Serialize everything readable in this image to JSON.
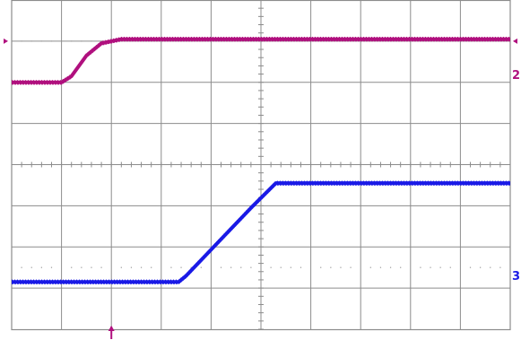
{
  "chart_data": {
    "type": "line",
    "title": "",
    "xlabel": "",
    "ylabel": "",
    "grid": true,
    "x_divisions": 10,
    "y_divisions": 8,
    "xlim": [
      0,
      10
    ],
    "ylim": [
      -4,
      4
    ],
    "trigger_position_div": 2,
    "series": [
      {
        "channel_label": "2",
        "color": "#b0107e",
        "marker_level_div": 3,
        "points": [
          [
            0,
            2.0
          ],
          [
            1.0,
            2.0
          ],
          [
            1.2,
            2.15
          ],
          [
            1.5,
            2.65
          ],
          [
            1.8,
            2.95
          ],
          [
            2.2,
            3.05
          ],
          [
            10,
            3.05
          ]
        ]
      },
      {
        "channel_label": "3",
        "color": "#1a1ae6",
        "marker_level_div": -2.5,
        "points": [
          [
            0,
            -2.85
          ],
          [
            3.35,
            -2.85
          ],
          [
            3.5,
            -2.7
          ],
          [
            4.8,
            -1.05
          ],
          [
            5.3,
            -0.45
          ],
          [
            5.6,
            -0.45
          ],
          [
            10,
            -0.45
          ]
        ]
      }
    ]
  }
}
